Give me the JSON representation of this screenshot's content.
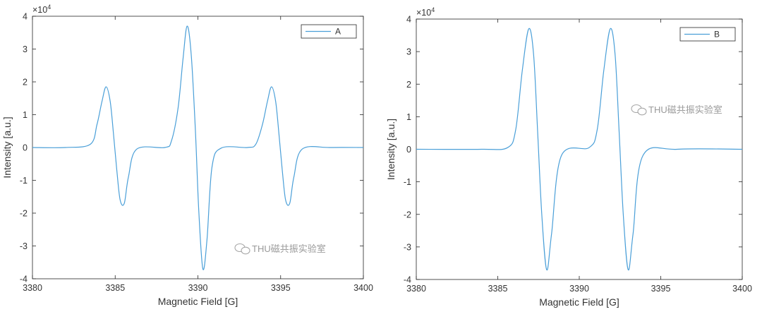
{
  "chart_data": [
    {
      "type": "line",
      "xlabel": "Magnetic Field [G]",
      "ylabel": "Intensity [a.u.]",
      "exponent_label": "×10",
      "exponent_power": "4",
      "xlim": [
        3380,
        3400
      ],
      "ylim": [
        -4,
        4
      ],
      "xticks": [
        "3380",
        "3385",
        "3390",
        "3395",
        "3400"
      ],
      "yticks": [
        "4",
        "3",
        "2",
        "1",
        "0",
        "-1",
        "-2",
        "-3",
        "-4"
      ],
      "legend_position": "top-right",
      "grid": false,
      "line_color": "#4a9fd8",
      "series": [
        {
          "name": "A",
          "x": [
            3380,
            3382,
            3383.5,
            3383.9,
            3384.2,
            3384.45,
            3384.7,
            3384.9,
            3385.1,
            3385.3,
            3385.55,
            3385.8,
            3386.3,
            3388,
            3388.4,
            3388.8,
            3389.1,
            3389.35,
            3389.6,
            3389.85,
            3390.05,
            3390.3,
            3390.55,
            3390.85,
            3391.4,
            3393,
            3393.5,
            3393.9,
            3394.2,
            3394.45,
            3394.7,
            3394.9,
            3395.1,
            3395.3,
            3395.55,
            3395.8,
            3396.3,
            3398,
            3400
          ],
          "y": [
            0,
            0,
            0.1,
            0.7,
            1.4,
            1.85,
            1.4,
            0.4,
            -0.7,
            -1.6,
            -1.7,
            -0.9,
            -0.05,
            0,
            0.2,
            1.2,
            2.7,
            3.7,
            2.8,
            0.5,
            -1.9,
            -3.7,
            -2.8,
            -0.6,
            -0.02,
            0,
            0.1,
            0.7,
            1.4,
            1.85,
            1.4,
            0.4,
            -0.7,
            -1.6,
            -1.7,
            -0.9,
            -0.05,
            0,
            0
          ]
        },
        {
          "name": "B",
          "x": [
            3380,
            3384,
            3385.6,
            3386.1,
            3386.5,
            3386.9,
            3387.2,
            3387.45,
            3387.7,
            3388.0,
            3388.3,
            3388.9,
            3390.6,
            3391.1,
            3391.5,
            3391.9,
            3392.2,
            3392.45,
            3392.7,
            3393.0,
            3393.3,
            3393.9,
            3396,
            3400
          ],
          "y": [
            0,
            0,
            0.05,
            0.6,
            2.4,
            3.7,
            2.9,
            0.5,
            -2.0,
            -3.7,
            -2.6,
            -0.2,
            0.05,
            0.6,
            2.4,
            3.7,
            2.9,
            0.5,
            -2.0,
            -3.7,
            -2.6,
            -0.2,
            0,
            0
          ]
        }
      ]
    }
  ],
  "watermark_text": "THU磁共振实验室"
}
